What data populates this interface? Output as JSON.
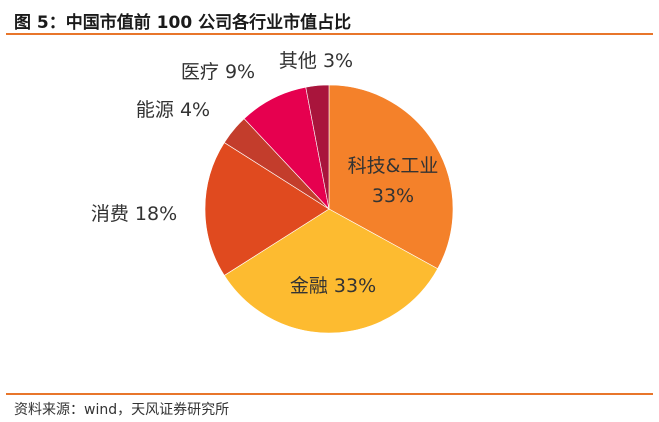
{
  "figure": {
    "title": "图 5：中国市值前 100 公司各行业市值占比",
    "source": "资料来源：wind，天风证券研究所",
    "accent_color": "#e8762b"
  },
  "chart_data": {
    "type": "pie",
    "title": "",
    "start_angle_deg": 0,
    "direction": "clockwise",
    "slices": [
      {
        "label": "科技&工业",
        "value_text": "33%",
        "value": 33,
        "color": "#f4812a",
        "label_color": "#333333"
      },
      {
        "label": "金融",
        "value_text": "33%",
        "value": 33,
        "color": "#fdbb30",
        "label_color": "#333333"
      },
      {
        "label": "消费",
        "value_text": "18%",
        "value": 18,
        "color": "#e04a1f",
        "label_color": "#333333"
      },
      {
        "label": "能源",
        "value_text": "4%",
        "value": 4,
        "color": "#c33d2c",
        "label_color": "#333333"
      },
      {
        "label": "医疗",
        "value_text": "9%",
        "value": 9,
        "color": "#e6004f",
        "label_color": "#333333"
      },
      {
        "label": "其他",
        "value_text": "3%",
        "value": 3,
        "color": "#a9153c",
        "label_color": "#333333"
      }
    ]
  }
}
